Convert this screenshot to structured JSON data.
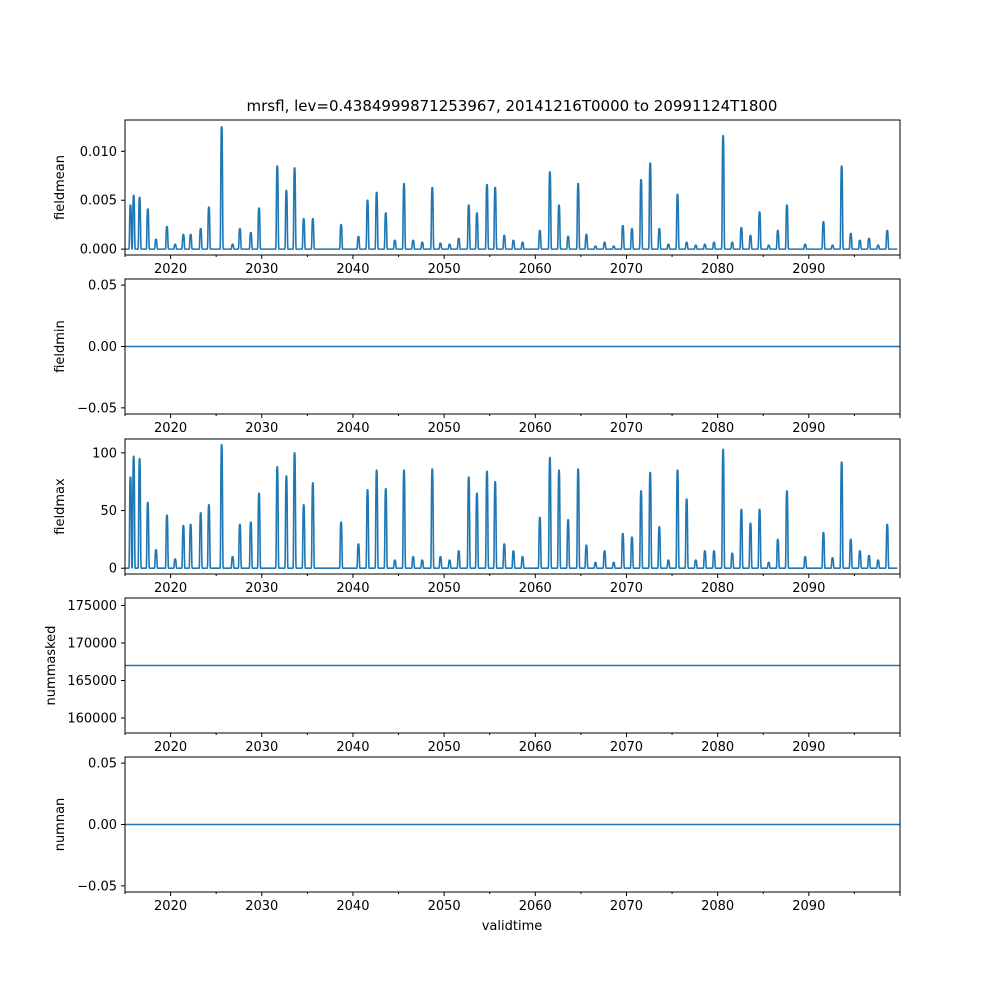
{
  "chart_data": {
    "type": "line",
    "title": "mrsfl, lev=0.4384999871253967, 20141216T0000 to 20991124T1800",
    "xlabel": "validtime",
    "xlim": [
      2015.0,
      2100.0
    ],
    "x_ticks": [
      2020,
      2030,
      2040,
      2050,
      2060,
      2070,
      2080,
      2090
    ],
    "x_tick_labels": [
      "2020",
      "2030",
      "2040",
      "2050",
      "2060",
      "2070",
      "2080",
      "2090"
    ],
    "color": "#1f77b4",
    "panels": [
      {
        "key": "fieldmean",
        "ylabel": "fieldmean",
        "ylim": [
          -0.0006,
          0.0132
        ],
        "y_ticks": [
          0.0,
          0.005,
          0.01
        ],
        "y_tick_labels": [
          "0.000",
          "0.005",
          "0.010"
        ],
        "baseline": 0.0,
        "peaks": [
          [
            2015.6,
            0.0045
          ],
          [
            2015.95,
            0.0055
          ],
          [
            2016.6,
            0.0053
          ],
          [
            2017.5,
            0.0041
          ],
          [
            2018.4,
            0.001
          ],
          [
            2019.6,
            0.0023
          ],
          [
            2020.5,
            0.0005
          ],
          [
            2021.4,
            0.0015
          ],
          [
            2022.2,
            0.0015
          ],
          [
            2023.3,
            0.0021
          ],
          [
            2024.2,
            0.0043
          ],
          [
            2025.6,
            0.0125
          ],
          [
            2026.8,
            0.0005
          ],
          [
            2027.6,
            0.0021
          ],
          [
            2028.8,
            0.0017
          ],
          [
            2029.7,
            0.0042
          ],
          [
            2031.7,
            0.0085
          ],
          [
            2032.7,
            0.006
          ],
          [
            2033.6,
            0.0083
          ],
          [
            2034.6,
            0.0031
          ],
          [
            2035.6,
            0.0031
          ],
          [
            2038.7,
            0.0025
          ],
          [
            2040.6,
            0.0013
          ],
          [
            2041.6,
            0.005
          ],
          [
            2042.6,
            0.0058
          ],
          [
            2043.6,
            0.0037
          ],
          [
            2044.6,
            0.0009
          ],
          [
            2045.6,
            0.0067
          ],
          [
            2046.6,
            0.0009
          ],
          [
            2047.6,
            0.0007
          ],
          [
            2048.7,
            0.0063
          ],
          [
            2049.6,
            0.0006
          ],
          [
            2050.6,
            0.0005
          ],
          [
            2051.6,
            0.0011
          ],
          [
            2052.7,
            0.0045
          ],
          [
            2053.6,
            0.0037
          ],
          [
            2054.7,
            0.0066
          ],
          [
            2055.6,
            0.0063
          ],
          [
            2056.6,
            0.0014
          ],
          [
            2057.6,
            0.0009
          ],
          [
            2058.6,
            0.0007
          ],
          [
            2060.5,
            0.0019
          ],
          [
            2061.6,
            0.0079
          ],
          [
            2062.6,
            0.0045
          ],
          [
            2063.6,
            0.0013
          ],
          [
            2064.7,
            0.0067
          ],
          [
            2065.6,
            0.0015
          ],
          [
            2066.6,
            0.0003
          ],
          [
            2067.6,
            0.0007
          ],
          [
            2068.6,
            0.0003
          ],
          [
            2069.6,
            0.0024
          ],
          [
            2070.6,
            0.0021
          ],
          [
            2071.6,
            0.0071
          ],
          [
            2072.6,
            0.0088
          ],
          [
            2073.6,
            0.0021
          ],
          [
            2074.6,
            0.0005
          ],
          [
            2075.6,
            0.0056
          ],
          [
            2076.6,
            0.0007
          ],
          [
            2077.6,
            0.0004
          ],
          [
            2078.6,
            0.0005
          ],
          [
            2079.6,
            0.0007
          ],
          [
            2080.6,
            0.0116
          ],
          [
            2081.6,
            0.0007
          ],
          [
            2082.6,
            0.0022
          ],
          [
            2083.6,
            0.0014
          ],
          [
            2084.6,
            0.0038
          ],
          [
            2085.6,
            0.0004
          ],
          [
            2086.6,
            0.0019
          ],
          [
            2087.6,
            0.0045
          ],
          [
            2089.6,
            0.0005
          ],
          [
            2091.6,
            0.0028
          ],
          [
            2092.6,
            0.0004
          ],
          [
            2093.6,
            0.0085
          ],
          [
            2094.6,
            0.0016
          ],
          [
            2095.6,
            0.0009
          ],
          [
            2096.6,
            0.0011
          ],
          [
            2097.6,
            0.0004
          ],
          [
            2098.6,
            0.0019
          ]
        ]
      },
      {
        "key": "fieldmin",
        "ylabel": "fieldmin",
        "ylim": [
          -0.055,
          0.055
        ],
        "y_ticks": [
          -0.05,
          0.0,
          0.05
        ],
        "y_tick_labels": [
          "−0.05",
          "0.00",
          "0.05"
        ],
        "baseline": 0.0,
        "peaks": []
      },
      {
        "key": "fieldmax",
        "ylabel": "fieldmax",
        "ylim": [
          -5,
          112
        ],
        "y_ticks": [
          0,
          50,
          100
        ],
        "y_tick_labels": [
          "0",
          "50",
          "100"
        ],
        "baseline": 0,
        "peaks": [
          [
            2015.6,
            79
          ],
          [
            2015.95,
            97
          ],
          [
            2016.6,
            95
          ],
          [
            2017.5,
            57
          ],
          [
            2018.4,
            16
          ],
          [
            2019.6,
            46
          ],
          [
            2020.5,
            8
          ],
          [
            2021.4,
            37
          ],
          [
            2022.2,
            38
          ],
          [
            2023.3,
            48
          ],
          [
            2024.2,
            55
          ],
          [
            2025.6,
            107
          ],
          [
            2026.8,
            10
          ],
          [
            2027.6,
            38
          ],
          [
            2028.8,
            40
          ],
          [
            2029.7,
            65
          ],
          [
            2031.7,
            88
          ],
          [
            2032.7,
            80
          ],
          [
            2033.6,
            100
          ],
          [
            2034.6,
            55
          ],
          [
            2035.6,
            74
          ],
          [
            2038.7,
            40
          ],
          [
            2040.6,
            21
          ],
          [
            2041.6,
            68
          ],
          [
            2042.6,
            85
          ],
          [
            2043.6,
            69
          ],
          [
            2044.6,
            7
          ],
          [
            2045.6,
            85
          ],
          [
            2046.6,
            10
          ],
          [
            2047.6,
            7
          ],
          [
            2048.7,
            86
          ],
          [
            2049.6,
            10
          ],
          [
            2050.6,
            7
          ],
          [
            2051.6,
            15
          ],
          [
            2052.7,
            79
          ],
          [
            2053.6,
            65
          ],
          [
            2054.7,
            84
          ],
          [
            2055.6,
            75
          ],
          [
            2056.6,
            21
          ],
          [
            2057.6,
            15
          ],
          [
            2058.6,
            10
          ],
          [
            2060.5,
            44
          ],
          [
            2061.6,
            96
          ],
          [
            2062.6,
            85
          ],
          [
            2063.6,
            42
          ],
          [
            2064.7,
            86
          ],
          [
            2065.6,
            20
          ],
          [
            2066.6,
            5
          ],
          [
            2067.6,
            15
          ],
          [
            2068.6,
            5
          ],
          [
            2069.6,
            30
          ],
          [
            2070.6,
            27
          ],
          [
            2071.6,
            67
          ],
          [
            2072.6,
            83
          ],
          [
            2073.6,
            36
          ],
          [
            2074.6,
            7
          ],
          [
            2075.6,
            85
          ],
          [
            2076.6,
            60
          ],
          [
            2077.6,
            7
          ],
          [
            2078.6,
            15
          ],
          [
            2079.6,
            15
          ],
          [
            2080.6,
            103
          ],
          [
            2081.6,
            13
          ],
          [
            2082.6,
            51
          ],
          [
            2083.6,
            39
          ],
          [
            2084.6,
            51
          ],
          [
            2085.6,
            5
          ],
          [
            2086.6,
            25
          ],
          [
            2087.6,
            67
          ],
          [
            2089.6,
            10
          ],
          [
            2091.6,
            31
          ],
          [
            2092.6,
            9
          ],
          [
            2093.6,
            92
          ],
          [
            2094.6,
            25
          ],
          [
            2095.6,
            15
          ],
          [
            2096.6,
            11
          ],
          [
            2097.6,
            7
          ],
          [
            2098.6,
            38
          ]
        ]
      },
      {
        "key": "nummasked",
        "ylabel": "nummasked",
        "ylim": [
          158000,
          176000
        ],
        "y_ticks": [
          160000,
          165000,
          170000,
          175000
        ],
        "y_tick_labels": [
          "160000",
          "165000",
          "170000",
          "175000"
        ],
        "baseline": 167000,
        "peaks": []
      },
      {
        "key": "numnan",
        "ylabel": "numnan",
        "ylim": [
          -0.055,
          0.055
        ],
        "y_ticks": [
          -0.05,
          0.0,
          0.05
        ],
        "y_tick_labels": [
          "−0.05",
          "0.00",
          "0.05"
        ],
        "baseline": 0.0,
        "peaks": []
      }
    ]
  }
}
